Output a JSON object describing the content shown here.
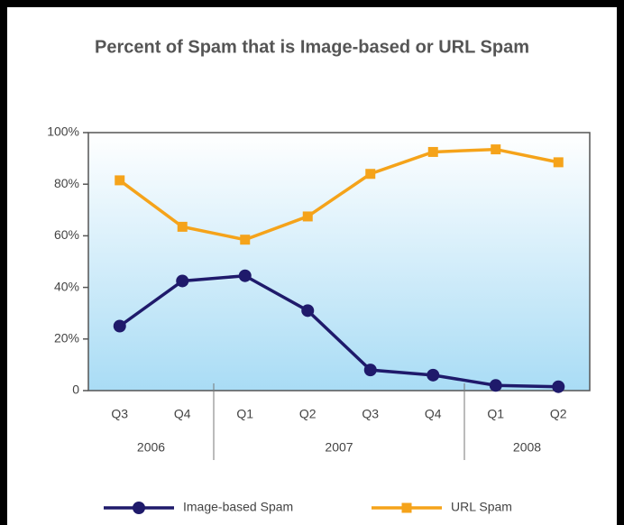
{
  "chart_data": {
    "type": "line",
    "title": "Percent of Spam that is Image-based or URL Spam",
    "categories": [
      "Q3",
      "Q4",
      "Q1",
      "Q2",
      "Q3",
      "Q4",
      "Q1",
      "Q2"
    ],
    "category_groups": [
      {
        "label": "2006",
        "size": 2
      },
      {
        "label": "2007",
        "size": 4
      },
      {
        "label": "2008",
        "size": 2
      }
    ],
    "series": [
      {
        "name": "Image-based Spam",
        "color": "#1f1a6b",
        "marker": "circle",
        "values": [
          25,
          42.5,
          44.5,
          31,
          8,
          6,
          2,
          1.5
        ]
      },
      {
        "name": "URL Spam",
        "color": "#f5a31a",
        "marker": "square",
        "values": [
          81.5,
          63.5,
          58.5,
          67.5,
          84,
          92.5,
          93.5,
          88.5
        ]
      }
    ],
    "ylim": [
      0,
      100
    ],
    "yticks": [
      0,
      {
        "value": 20,
        "label": "20%"
      },
      {
        "value": 40,
        "label": "40%"
      },
      {
        "value": 60,
        "label": "60%"
      },
      {
        "value": 80,
        "label": "80%"
      },
      {
        "value": 100,
        "label": "100%"
      }
    ]
  }
}
